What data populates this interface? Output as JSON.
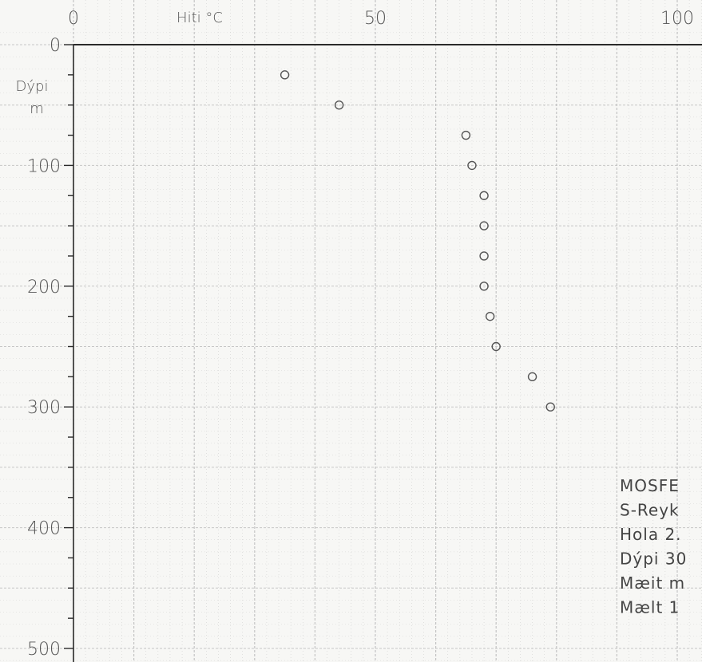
{
  "chart_data": {
    "type": "scatter",
    "title": "",
    "xlabel": "Hiti °C",
    "ylabel_line1": "Dýpi",
    "ylabel_line2": "m",
    "xlim": [
      0,
      100
    ],
    "ylim": [
      0,
      500
    ],
    "x_axis_position": "top",
    "y_axis_inverted": true,
    "grid": true,
    "marker": "open-circle",
    "x_ticks": [
      0,
      50,
      100
    ],
    "x_tick_labels": [
      "0",
      "50",
      "100"
    ],
    "y_ticks": [
      0,
      100,
      200,
      300,
      400,
      500
    ],
    "y_tick_labels": [
      "0",
      "100",
      "200",
      "300",
      "400",
      "500"
    ],
    "series": [
      {
        "points": [
          {
            "x": 35,
            "y": 25
          },
          {
            "x": 44,
            "y": 50
          },
          {
            "x": 65,
            "y": 75
          },
          {
            "x": 66,
            "y": 100
          },
          {
            "x": 68,
            "y": 125
          },
          {
            "x": 68,
            "y": 150
          },
          {
            "x": 68,
            "y": 175
          },
          {
            "x": 68,
            "y": 200
          },
          {
            "x": 69,
            "y": 225
          },
          {
            "x": 70,
            "y": 250
          },
          {
            "x": 76,
            "y": 275
          },
          {
            "x": 79,
            "y": 300
          }
        ]
      }
    ],
    "annotation_lines": [
      "MOSFE",
      "S-Reyk",
      "Hola 2.",
      "Dýpi 30",
      "Mæit m",
      "Mælt 1"
    ]
  },
  "colors": {
    "background": "#f7f7f5",
    "grid": "#b8b8b8",
    "axis": "#2a2a2a",
    "marker": "#555555"
  }
}
